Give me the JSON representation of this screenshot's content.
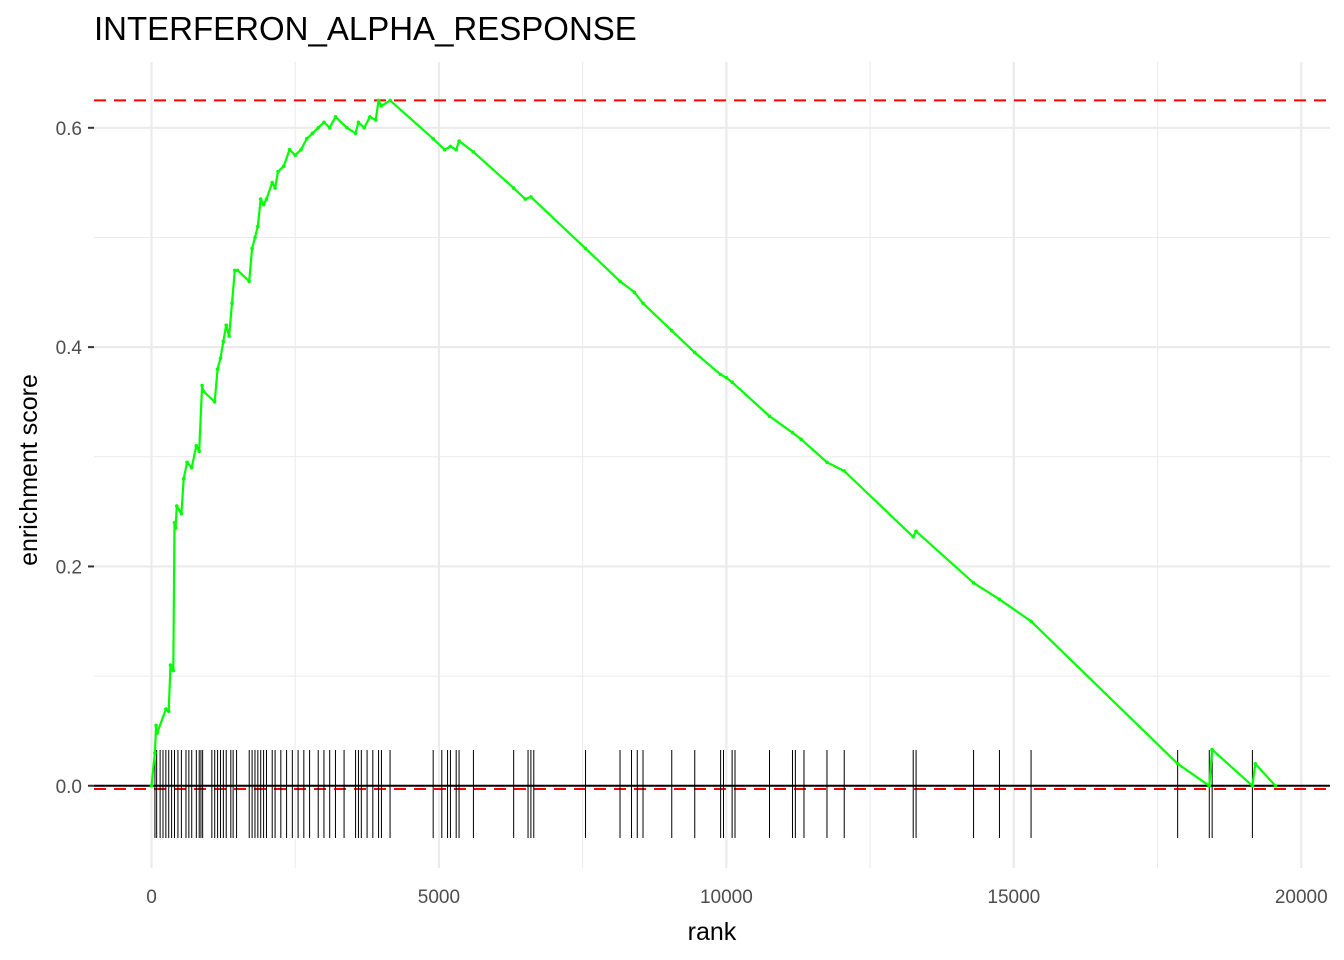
{
  "chart_data": {
    "type": "line",
    "title": "INTERFERON_ALPHA_RESPONSE",
    "xlabel": "rank",
    "ylabel": "enrichment score",
    "xlim": [
      -1000,
      20500
    ],
    "ylim": [
      -0.075,
      0.66
    ],
    "grid": true,
    "x_ticks": [
      0,
      5000,
      10000,
      15000,
      20000
    ],
    "x_tick_labels": [
      "0",
      "5000",
      "10000",
      "15000",
      "20000"
    ],
    "y_ticks": [
      0.0,
      0.2,
      0.4,
      0.6
    ],
    "y_tick_labels": [
      "0.0",
      "0.2",
      "0.4",
      "0.6"
    ],
    "colors": {
      "curve": "#00ff00",
      "threshold": "#ff0000",
      "baseline": "#000000",
      "rug": "#000000",
      "grid": "#ebebeb"
    },
    "reference_lines": {
      "max_es": 0.625,
      "min_es": -0.003,
      "zero": 0.0
    },
    "series": [
      {
        "x": [
          0,
          60,
          80,
          100,
          250,
          300,
          330,
          380,
          400,
          420,
          440,
          520,
          560,
          620,
          700,
          780,
          830,
          880,
          900,
          1100,
          1150,
          1200,
          1250,
          1300,
          1350,
          1400,
          1450,
          1500,
          1700,
          1750,
          1800,
          1850,
          1900,
          1950,
          2000,
          2100,
          2150,
          2200,
          2300,
          2400,
          2500,
          2600,
          2700,
          2800,
          2900,
          3000,
          3100,
          3200,
          3400,
          3550,
          3600,
          3700,
          3800,
          3900,
          3950,
          4000,
          4150,
          4900,
          5100,
          5200,
          5300,
          5350,
          5600,
          6300,
          6500,
          6600,
          7550,
          8150,
          8400,
          8550,
          9050,
          9450,
          9900,
          10000,
          10100,
          10750,
          11150,
          11300,
          11750,
          12050,
          13250,
          13300,
          14300,
          14750,
          15300,
          17850,
          18400,
          18450,
          19150,
          19200,
          19550
        ],
        "y": [
          0.0,
          0.03,
          0.055,
          0.048,
          0.07,
          0.068,
          0.11,
          0.105,
          0.24,
          0.235,
          0.255,
          0.248,
          0.28,
          0.295,
          0.29,
          0.31,
          0.305,
          0.365,
          0.36,
          0.35,
          0.38,
          0.39,
          0.405,
          0.42,
          0.41,
          0.44,
          0.47,
          0.47,
          0.46,
          0.49,
          0.5,
          0.51,
          0.535,
          0.53,
          0.535,
          0.55,
          0.545,
          0.56,
          0.565,
          0.58,
          0.575,
          0.58,
          0.59,
          0.595,
          0.6,
          0.605,
          0.6,
          0.61,
          0.6,
          0.595,
          0.605,
          0.6,
          0.61,
          0.607,
          0.625,
          0.62,
          0.625,
          0.59,
          0.58,
          0.583,
          0.58,
          0.588,
          0.578,
          0.545,
          0.535,
          0.537,
          0.49,
          0.46,
          0.45,
          0.44,
          0.415,
          0.395,
          0.375,
          0.372,
          0.368,
          0.337,
          0.322,
          0.316,
          0.295,
          0.287,
          0.227,
          0.232,
          0.185,
          0.17,
          0.15,
          0.02,
          0.0,
          0.033,
          0.0,
          0.02,
          0.0
        ]
      }
    ],
    "rug_positions": [
      60,
      90,
      150,
      200,
      250,
      300,
      350,
      400,
      460,
      520,
      600,
      650,
      700,
      780,
      830,
      860,
      890,
      1050,
      1100,
      1150,
      1200,
      1250,
      1300,
      1380,
      1420,
      1480,
      1700,
      1750,
      1800,
      1850,
      1900,
      1950,
      2000,
      2100,
      2150,
      2250,
      2350,
      2450,
      2550,
      2650,
      2750,
      2900,
      3000,
      3100,
      3200,
      3350,
      3550,
      3600,
      3650,
      3750,
      3850,
      3950,
      4000,
      4150,
      4900,
      5050,
      5150,
      5200,
      5300,
      5350,
      5600,
      6300,
      6550,
      6600,
      6650,
      7550,
      8150,
      8350,
      8450,
      8550,
      9050,
      9450,
      9900,
      9950,
      10100,
      10150,
      10750,
      11150,
      11200,
      11350,
      11750,
      12050,
      13250,
      13300,
      14300,
      14750,
      15300,
      17850,
      18400,
      18450,
      19150
    ]
  }
}
